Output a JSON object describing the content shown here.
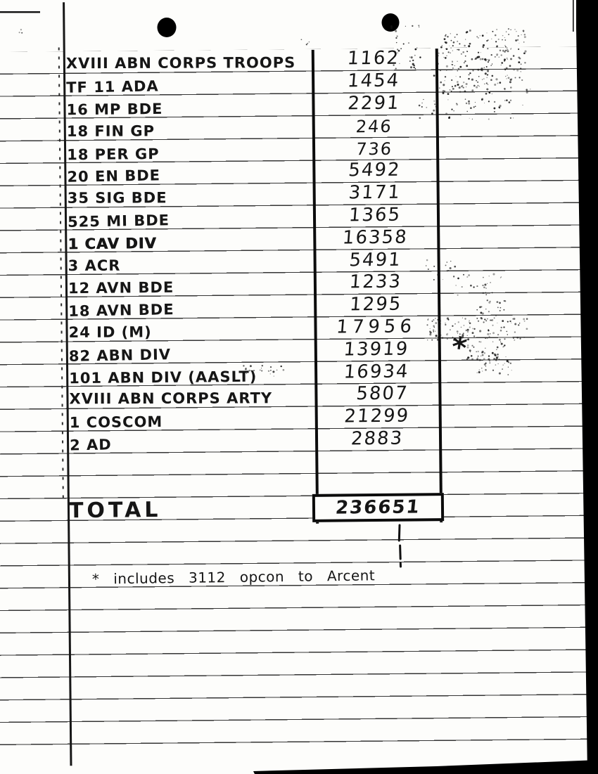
{
  "colors": {
    "ink": "#161616",
    "paper": "#fdfdfb",
    "scan_black": "#000000"
  },
  "table": {
    "rows": [
      {
        "unit": "XVIII ABN CORPS TROOPS",
        "value": "1162"
      },
      {
        "unit": "TF 11 ADA",
        "value": "1454"
      },
      {
        "unit": "16 MP BDE",
        "value": "2291"
      },
      {
        "unit": "18 FIN GP",
        "value": "246"
      },
      {
        "unit": "18 PER GP",
        "value": "736"
      },
      {
        "unit": "20 EN BDE",
        "value": "5492"
      },
      {
        "unit": "35 SIG BDE",
        "value": "3171"
      },
      {
        "unit": "525 MI BDE",
        "value": "1365"
      },
      {
        "unit": "1 CAV DIV",
        "value": "16358"
      },
      {
        "unit": "3 ACR",
        "value": "5491"
      },
      {
        "unit": "12 AVN BDE",
        "value": "1233"
      },
      {
        "unit": "18 AVN BDE",
        "value": "1295"
      },
      {
        "unit": "24 ID (M)",
        "value": "17956"
      },
      {
        "unit": "82 ABN DIV",
        "value": "13919"
      },
      {
        "unit": "101 ABN DIV (AASLT)",
        "value": "16934"
      },
      {
        "unit": "XVIII ABN CORPS ARTY",
        "value": "5807"
      },
      {
        "unit": "1 COSCOM",
        "value": "21299"
      },
      {
        "unit": "2 AD",
        "value": "2883"
      }
    ],
    "total": {
      "label": "TOTAL",
      "value": "236651"
    }
  },
  "footnote": "* includes 3112 opcon to Arcent",
  "annotations": {
    "asterisk": "*"
  }
}
